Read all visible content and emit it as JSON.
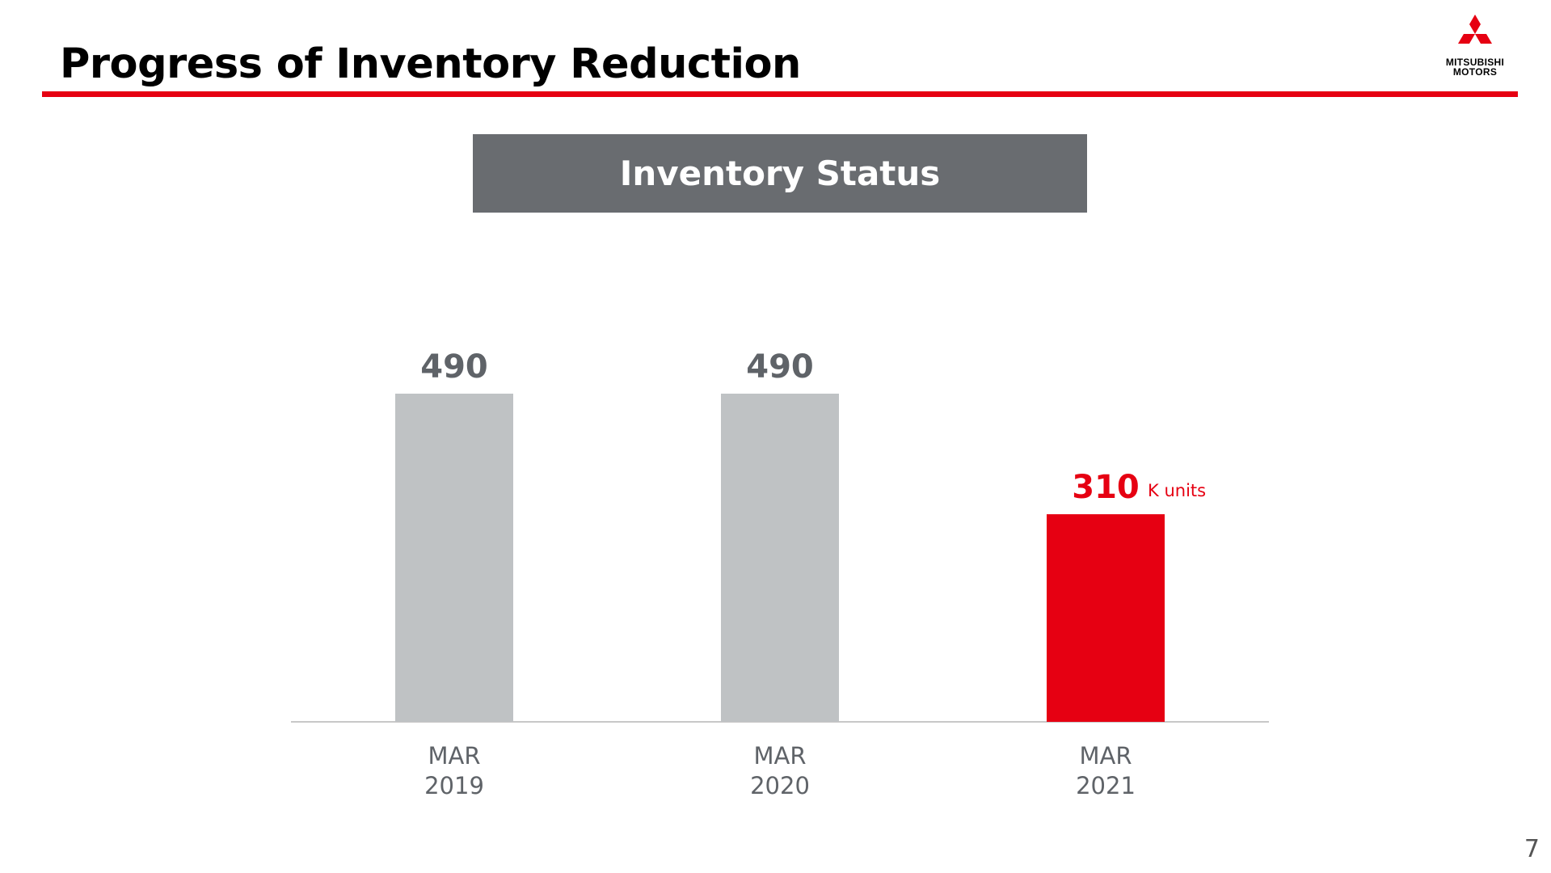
{
  "slide": {
    "title": "Progress of Inventory Reduction",
    "page_number": "7"
  },
  "logo": {
    "line1": "MITSUBISHI",
    "line2": "MOTORS",
    "mark": "three-diamond-icon"
  },
  "header_box": {
    "label": "Inventory Status"
  },
  "colors": {
    "accent": "#E60012",
    "bar_gray": "#BFC2C4",
    "header_gray": "#696C70",
    "value_gray": "#5F6368",
    "axis": "#C8C8C8"
  },
  "chart_data": {
    "type": "bar",
    "title": "Inventory Status",
    "categories": [
      "MAR\n2019",
      "MAR\n2020",
      "MAR\n2021"
    ],
    "values": [
      490,
      490,
      310
    ],
    "data_labels": [
      "490",
      "490",
      "310"
    ],
    "unit_label": "K units",
    "highlight_index": 2,
    "ylim": [
      0,
      490
    ],
    "grid": false,
    "legend": "none"
  }
}
